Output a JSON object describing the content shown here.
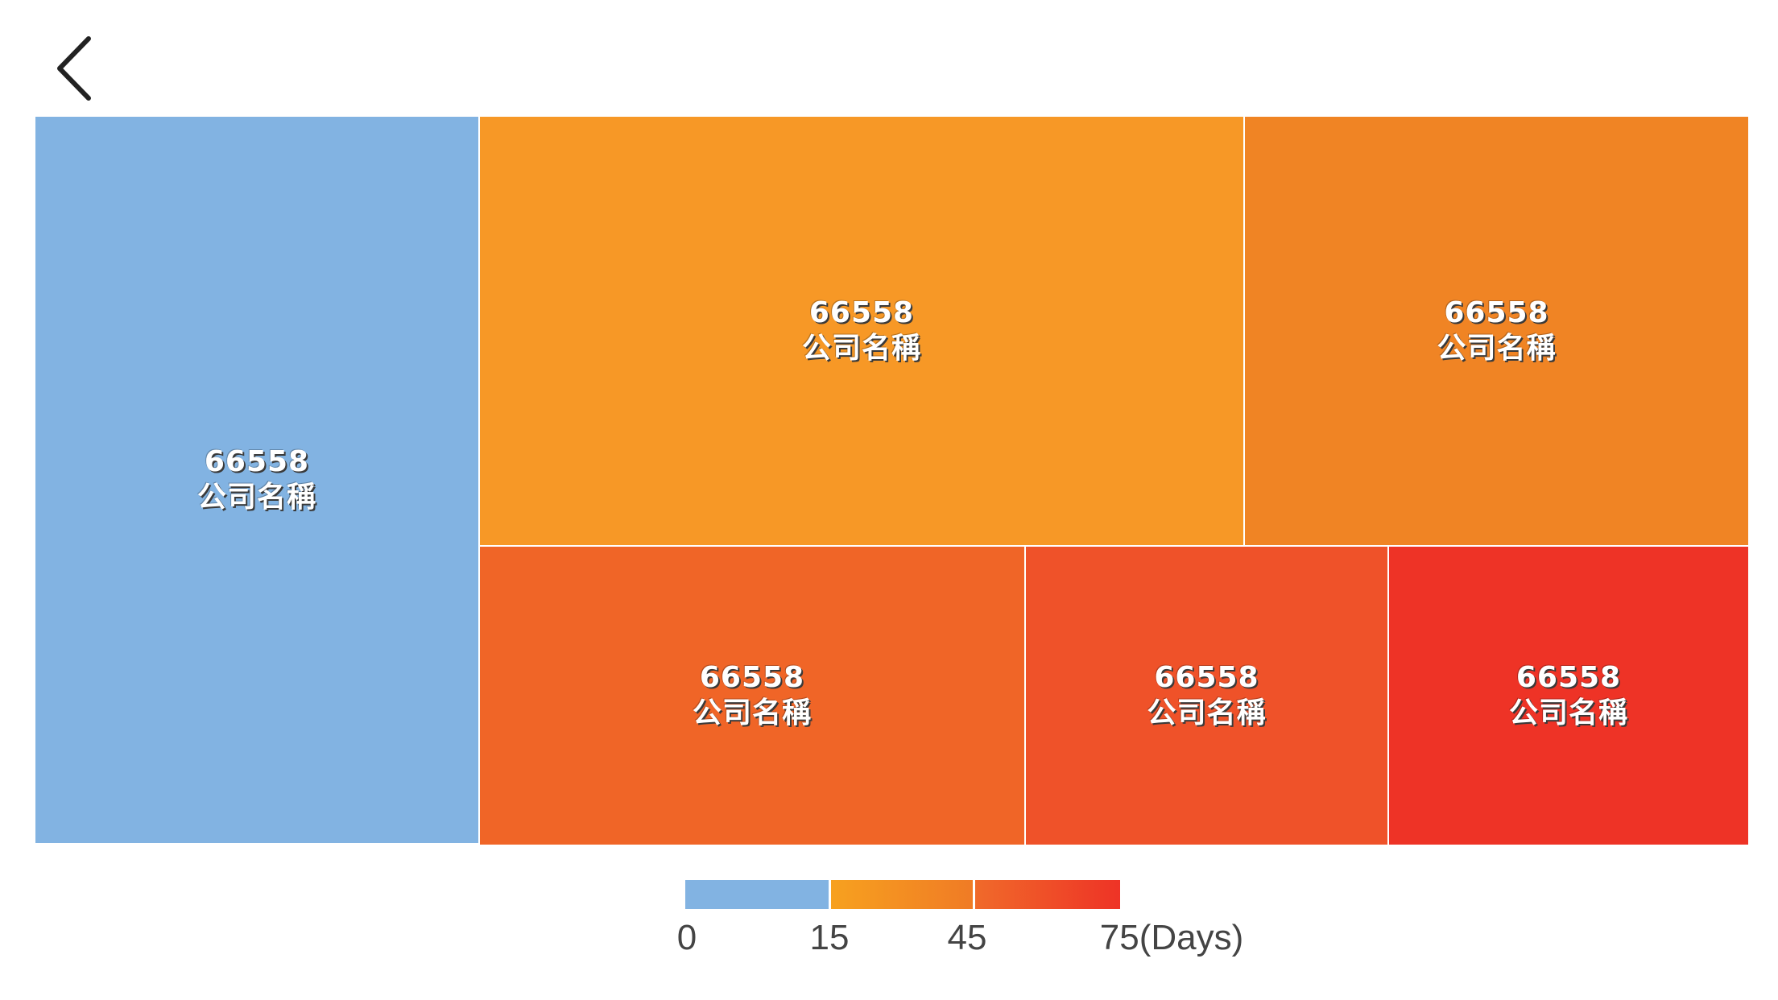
{
  "chart_data": {
    "type": "treemap",
    "unit": "Days",
    "tiles": [
      {
        "value": "66558",
        "name": "公司名稱",
        "color": "#82b3e2"
      },
      {
        "value": "66558",
        "name": "公司名稱",
        "color": "#f79826"
      },
      {
        "value": "66558",
        "name": "公司名稱",
        "color": "#f08424"
      },
      {
        "value": "66558",
        "name": "公司名稱",
        "color": "#f06527"
      },
      {
        "value": "66558",
        "name": "公司名稱",
        "color": "#ef5229"
      },
      {
        "value": "66558",
        "name": "公司名稱",
        "color": "#ee3326"
      }
    ],
    "legend": {
      "ticks": [
        "0",
        "15",
        "45",
        "75(Days)"
      ],
      "segments": [
        {
          "from": 0,
          "to": 15,
          "color_start": "#82b3e2",
          "color_end": "#82b3e2"
        },
        {
          "from": 15,
          "to": 45,
          "color_start": "#f7a11f",
          "color_end": "#f07b25"
        },
        {
          "from": 45,
          "to": 75,
          "color_start": "#f06a2a",
          "color_end": "#ee3326"
        }
      ]
    }
  },
  "nav": {
    "back_icon": "chevron-left-icon"
  }
}
